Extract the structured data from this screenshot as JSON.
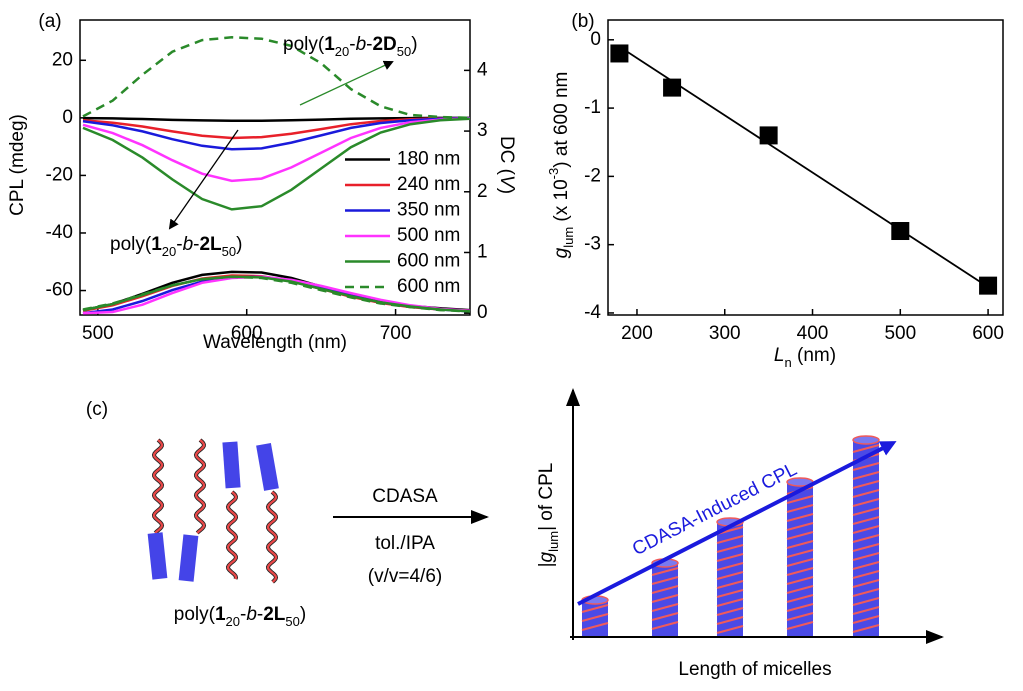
{
  "chart_data": [
    {
      "type": "line",
      "label": "(a)",
      "xlabel": [
        {
          "text": "Wavelength (nm)",
          "style": "n"
        }
      ],
      "ylabel": [
        {
          "text": "CPL (mdeg)",
          "style": "n"
        }
      ],
      "y2label": [
        {
          "text": "DC (",
          "style": "n"
        },
        {
          "text": "V",
          "style": "i"
        },
        {
          "text": ")",
          "style": "n"
        }
      ],
      "x": [
        490,
        510,
        530,
        550,
        570,
        590,
        610,
        630,
        650,
        670,
        690,
        710,
        730,
        750
      ],
      "xlim": [
        488,
        750
      ],
      "xticks": [
        500,
        600,
        700
      ],
      "ylim": [
        -68.5,
        34
      ],
      "yticks": [
        -60,
        -40,
        -20,
        0,
        20
      ],
      "y2lim": [
        -0.03,
        4.83
      ],
      "y2ticks": [
        0,
        1,
        2,
        3,
        4
      ],
      "legend": "lower right",
      "series": [
        {
          "axis": "y2",
          "color": "#000000",
          "dash": "solid",
          "values": [
            0.05,
            0.15,
            0.32,
            0.5,
            0.63,
            0.68,
            0.67,
            0.58,
            0.44,
            0.3,
            0.2,
            0.12,
            0.08,
            0.05
          ]
        },
        {
          "axis": "y2",
          "color": "#e8202a",
          "dash": "solid",
          "values": [
            0.04,
            0.13,
            0.28,
            0.45,
            0.57,
            0.62,
            0.61,
            0.53,
            0.4,
            0.27,
            0.17,
            0.1,
            0.06,
            0.04
          ]
        },
        {
          "axis": "y2",
          "color": "#1a1adb",
          "dash": "solid",
          "values": [
            0,
            0.06,
            0.2,
            0.38,
            0.52,
            0.59,
            0.6,
            0.54,
            0.42,
            0.29,
            0.18,
            0.11,
            0.06,
            0.03
          ]
        },
        {
          "axis": "y2",
          "color": "#ff33ff",
          "dash": "solid",
          "values": [
            0,
            0.02,
            0.14,
            0.33,
            0.5,
            0.58,
            0.6,
            0.55,
            0.45,
            0.33,
            0.22,
            0.13,
            0.07,
            0.04
          ]
        },
        {
          "axis": "y2",
          "color": "#2a8a2a",
          "dash": "solid",
          "values": [
            0.05,
            0.15,
            0.3,
            0.46,
            0.56,
            0.6,
            0.59,
            0.52,
            0.4,
            0.28,
            0.18,
            0.11,
            0.06,
            0.03
          ]
        },
        {
          "axis": "y2",
          "color": "#2a8a2a",
          "dash": "dash",
          "values": [
            0.06,
            0.16,
            0.31,
            0.46,
            0.56,
            0.6,
            0.58,
            0.5,
            0.38,
            0.26,
            0.16,
            0.1,
            0.05,
            0.03
          ]
        },
        {
          "name": "180 nm",
          "color": "#000000",
          "dash": "solid",
          "values": [
            -0.1,
            -0.2,
            -0.4,
            -0.7,
            -0.9,
            -1,
            -1,
            -0.8,
            -0.6,
            -0.3,
            -0.2,
            -0.1,
            0,
            0
          ]
        },
        {
          "name": "240 nm",
          "color": "#e8202a",
          "dash": "solid",
          "values": [
            -0.8,
            -1.7,
            -3,
            -4.7,
            -6.2,
            -7,
            -6.7,
            -5.5,
            -3.9,
            -2.2,
            -1.1,
            -0.5,
            -0.2,
            -0.1
          ]
        },
        {
          "name": "350 nm",
          "color": "#1a1adb",
          "dash": "solid",
          "values": [
            -1.2,
            -2.6,
            -4.7,
            -7.4,
            -9.7,
            -10.9,
            -10.6,
            -8.6,
            -6.1,
            -3.5,
            -1.8,
            -0.8,
            -0.3,
            -0.1
          ]
        },
        {
          "name": "500 nm",
          "color": "#ff33ff",
          "dash": "solid",
          "values": [
            -2.4,
            -5.3,
            -9.5,
            -14.7,
            -19.4,
            -21.9,
            -21.1,
            -17.2,
            -12.1,
            -7,
            -3.5,
            -1.5,
            -0.6,
            -0.2
          ]
        },
        {
          "name": "600 nm",
          "color": "#2a8a2a",
          "dash": "solid",
          "values": [
            -3.5,
            -7.7,
            -13.8,
            -21.4,
            -28.2,
            -31.8,
            -30.7,
            -25,
            -17.6,
            -10.2,
            -5.1,
            -2.2,
            -0.8,
            -0.3
          ]
        },
        {
          "name": "600 nm",
          "color": "#2a8a2a",
          "dash": "dash",
          "values": [
            0.5,
            6,
            15,
            23,
            27,
            28,
            27.5,
            25,
            19,
            10,
            4,
            1,
            0.3,
            0
          ]
        }
      ],
      "annotations": [
        [
          {
            "text": "poly(",
            "style": "n"
          },
          {
            "text": "1",
            "style": "b"
          },
          {
            "text": "20",
            "style": "sub"
          },
          {
            "text": "-",
            "style": "n"
          },
          {
            "text": "b",
            "style": "i"
          },
          {
            "text": "-",
            "style": "n"
          },
          {
            "text": "2D",
            "style": "b"
          },
          {
            "text": "50",
            "style": "sub"
          },
          {
            "text": ")",
            "style": "n"
          }
        ],
        [
          {
            "text": "poly(",
            "style": "n"
          },
          {
            "text": "1",
            "style": "b"
          },
          {
            "text": "20",
            "style": "sub"
          },
          {
            "text": "-",
            "style": "n"
          },
          {
            "text": "b",
            "style": "i"
          },
          {
            "text": "-",
            "style": "n"
          },
          {
            "text": "2L",
            "style": "b"
          },
          {
            "text": "50",
            "style": "sub"
          },
          {
            "text": ")",
            "style": "n"
          }
        ]
      ]
    },
    {
      "type": "scatter",
      "label": "(b)",
      "xlabel": [
        {
          "text": "L",
          "style": "i"
        },
        {
          "text": "n",
          "style": "sub"
        },
        {
          "text": " (nm)",
          "style": "n"
        }
      ],
      "ylabel": [
        {
          "text": "g",
          "style": "i"
        },
        {
          "text": "lum",
          "style": "sub"
        },
        {
          "text": " (x 10",
          "style": "n"
        },
        {
          "text": "-3",
          "style": "sup"
        },
        {
          "text": ") at 600 nm",
          "style": "n"
        }
      ],
      "x": [
        180,
        240,
        350,
        500,
        600
      ],
      "values": [
        -0.2,
        -0.7,
        -1.4,
        -2.8,
        -3.6
      ],
      "color": "#000000",
      "marker": "square",
      "fit": {
        "x": [
          180,
          600
        ],
        "values": [
          -0.1,
          -3.62
        ]
      },
      "xlim": [
        167,
        617
      ],
      "xticks": [
        200,
        300,
        400,
        500,
        600
      ],
      "ylim": [
        -4.03,
        0.29
      ],
      "yticks": [
        -4,
        -3,
        -2,
        -1,
        0
      ]
    }
  ],
  "diagram": {
    "label": "(c)",
    "reagent": "CDASA",
    "solvent": "tol./IPA",
    "ratio": "(v/v=4/6)",
    "polymer": [
      {
        "text": "poly(",
        "style": "n"
      },
      {
        "text": "1",
        "style": "b"
      },
      {
        "text": "20",
        "style": "sub"
      },
      {
        "text": "-",
        "style": "n"
      },
      {
        "text": "b",
        "style": "i"
      },
      {
        "text": "-",
        "style": "n"
      },
      {
        "text": "2L",
        "style": "b"
      },
      {
        "text": "50",
        "style": "sub"
      },
      {
        "text": ")",
        "style": "n"
      }
    ],
    "y_axis": [
      {
        "text": "|",
        "style": "n"
      },
      {
        "text": "g",
        "style": "i"
      },
      {
        "text": "lum",
        "style": "sub"
      },
      {
        "text": "| of CPL",
        "style": "n"
      }
    ],
    "trend": "CDASA-Induced CPL",
    "x_axis": "Length of micelles"
  }
}
